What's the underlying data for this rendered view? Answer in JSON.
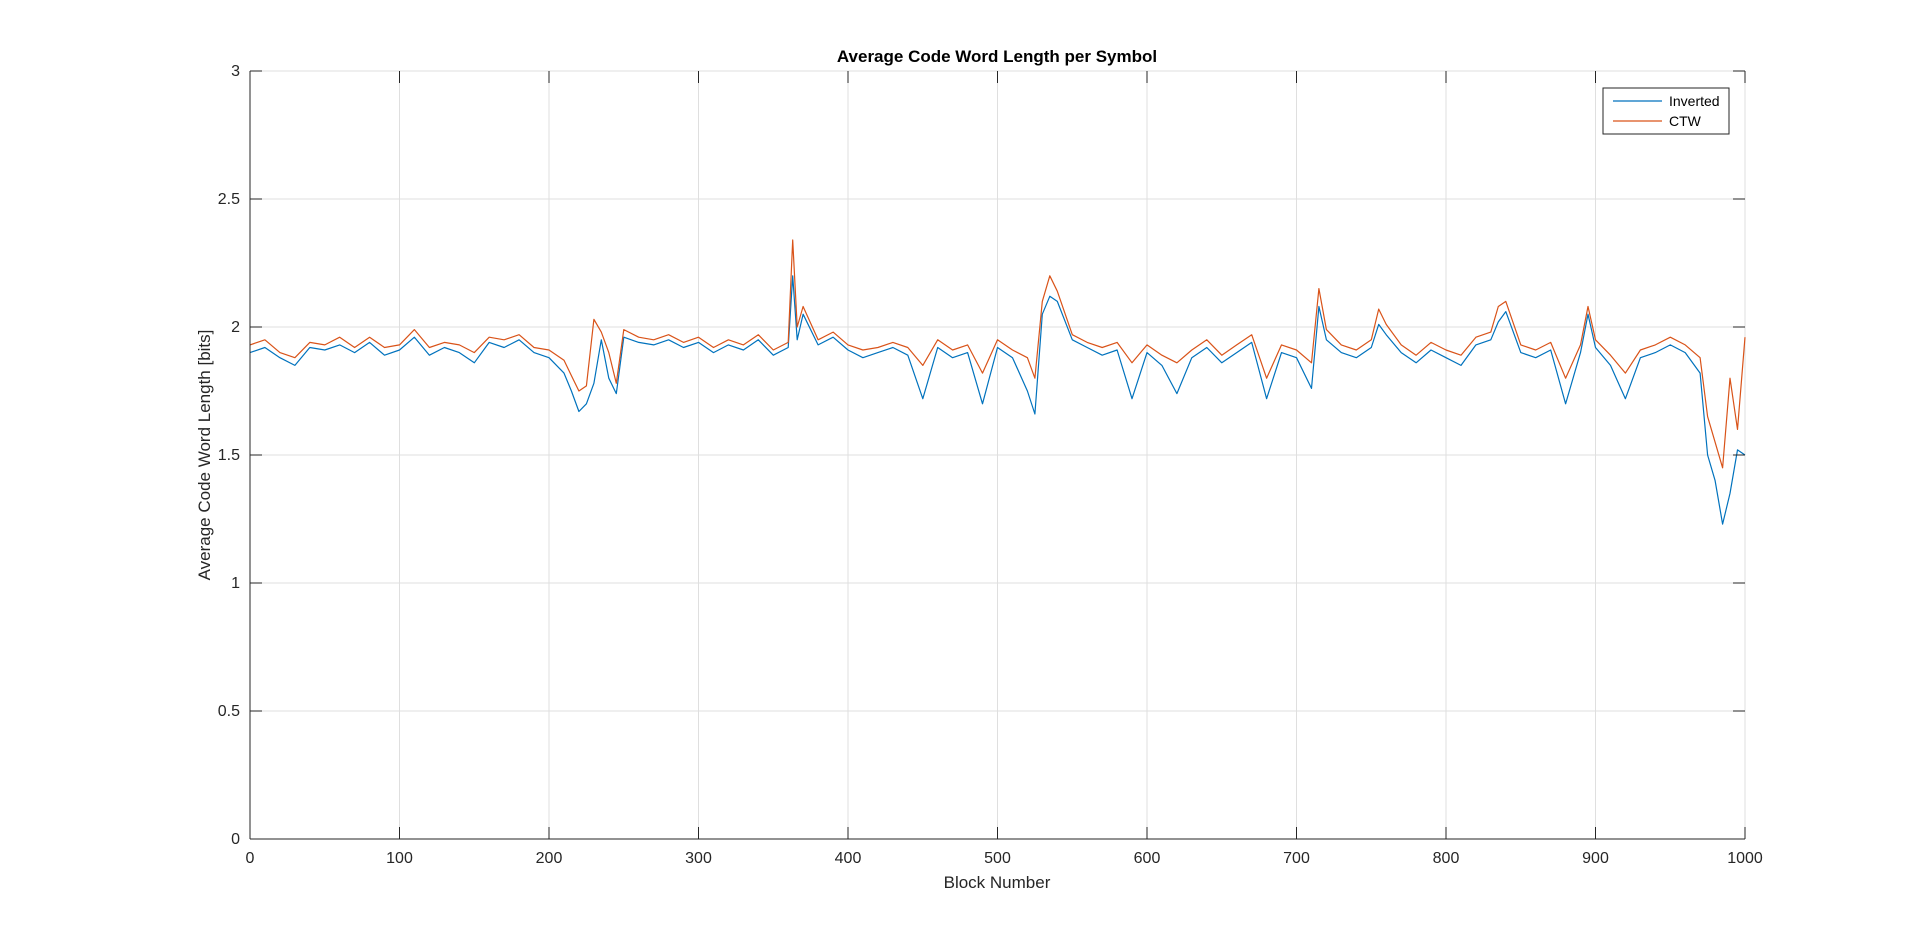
{
  "chart_data": {
    "type": "line",
    "title": "Average Code Word Length per Symbol",
    "xlabel": "Block Number",
    "ylabel": "Average Code Word Length [bits]",
    "xlim": [
      0,
      1000
    ],
    "ylim": [
      0,
      3
    ],
    "x_ticks": [
      "0",
      "100",
      "200",
      "300",
      "400",
      "500",
      "600",
      "700",
      "800",
      "900",
      "1000"
    ],
    "y_ticks": [
      "0",
      "0.5",
      "1",
      "1.5",
      "2",
      "2.5",
      "3"
    ],
    "grid": true,
    "legend_position": "top-right",
    "x": [
      0,
      10,
      20,
      30,
      40,
      50,
      60,
      70,
      80,
      90,
      100,
      110,
      120,
      130,
      140,
      150,
      160,
      170,
      180,
      190,
      200,
      210,
      215,
      220,
      225,
      230,
      235,
      240,
      245,
      250,
      260,
      270,
      280,
      290,
      300,
      310,
      320,
      330,
      340,
      350,
      360,
      363,
      366,
      370,
      380,
      390,
      400,
      410,
      420,
      430,
      440,
      450,
      460,
      470,
      480,
      490,
      500,
      510,
      520,
      525,
      530,
      535,
      540,
      550,
      560,
      570,
      580,
      590,
      600,
      610,
      620,
      630,
      640,
      650,
      660,
      670,
      680,
      690,
      700,
      710,
      715,
      720,
      730,
      740,
      750,
      755,
      760,
      770,
      780,
      790,
      800,
      810,
      820,
      830,
      835,
      840,
      850,
      860,
      870,
      880,
      890,
      895,
      900,
      910,
      920,
      930,
      940,
      950,
      960,
      970,
      975,
      980,
      985,
      990,
      995,
      1000
    ],
    "series": [
      {
        "name": "Inverted",
        "color": "#0072BD",
        "values": [
          1.9,
          1.92,
          1.88,
          1.85,
          1.92,
          1.91,
          1.93,
          1.9,
          1.94,
          1.89,
          1.91,
          1.96,
          1.89,
          1.92,
          1.9,
          1.86,
          1.94,
          1.92,
          1.95,
          1.9,
          1.88,
          1.82,
          1.75,
          1.67,
          1.7,
          1.78,
          1.95,
          1.8,
          1.74,
          1.96,
          1.94,
          1.93,
          1.95,
          1.92,
          1.94,
          1.9,
          1.93,
          1.91,
          1.95,
          1.89,
          1.92,
          2.2,
          1.95,
          2.05,
          1.93,
          1.96,
          1.91,
          1.88,
          1.9,
          1.92,
          1.89,
          1.72,
          1.92,
          1.88,
          1.9,
          1.7,
          1.92,
          1.88,
          1.75,
          1.66,
          2.05,
          2.12,
          2.1,
          1.95,
          1.92,
          1.89,
          1.91,
          1.72,
          1.9,
          1.85,
          1.74,
          1.88,
          1.92,
          1.86,
          1.9,
          1.94,
          1.72,
          1.9,
          1.88,
          1.76,
          2.08,
          1.95,
          1.9,
          1.88,
          1.92,
          2.01,
          1.97,
          1.9,
          1.86,
          1.91,
          1.88,
          1.85,
          1.93,
          1.95,
          2.02,
          2.06,
          1.9,
          1.88,
          1.91,
          1.7,
          1.9,
          2.05,
          1.92,
          1.85,
          1.72,
          1.88,
          1.9,
          1.93,
          1.9,
          1.82,
          1.5,
          1.4,
          1.23,
          1.35,
          1.52,
          1.5
        ]
      },
      {
        "name": "CTW",
        "color": "#D95319",
        "values": [
          1.93,
          1.95,
          1.9,
          1.88,
          1.94,
          1.93,
          1.96,
          1.92,
          1.96,
          1.92,
          1.93,
          1.99,
          1.92,
          1.94,
          1.93,
          1.9,
          1.96,
          1.95,
          1.97,
          1.92,
          1.91,
          1.87,
          1.81,
          1.75,
          1.77,
          2.03,
          1.98,
          1.9,
          1.78,
          1.99,
          1.96,
          1.95,
          1.97,
          1.94,
          1.96,
          1.92,
          1.95,
          1.93,
          1.97,
          1.91,
          1.94,
          2.34,
          2.0,
          2.08,
          1.95,
          1.98,
          1.93,
          1.91,
          1.92,
          1.94,
          1.92,
          1.85,
          1.95,
          1.91,
          1.93,
          1.82,
          1.95,
          1.91,
          1.88,
          1.8,
          2.1,
          2.2,
          2.14,
          1.97,
          1.94,
          1.92,
          1.94,
          1.86,
          1.93,
          1.89,
          1.86,
          1.91,
          1.95,
          1.89,
          1.93,
          1.97,
          1.8,
          1.93,
          1.91,
          1.86,
          2.15,
          1.99,
          1.93,
          1.91,
          1.95,
          2.07,
          2.01,
          1.93,
          1.89,
          1.94,
          1.91,
          1.89,
          1.96,
          1.98,
          2.08,
          2.1,
          1.93,
          1.91,
          1.94,
          1.8,
          1.93,
          2.08,
          1.95,
          1.89,
          1.82,
          1.91,
          1.93,
          1.96,
          1.93,
          1.88,
          1.65,
          1.55,
          1.45,
          1.8,
          1.6,
          1.96
        ]
      }
    ]
  }
}
